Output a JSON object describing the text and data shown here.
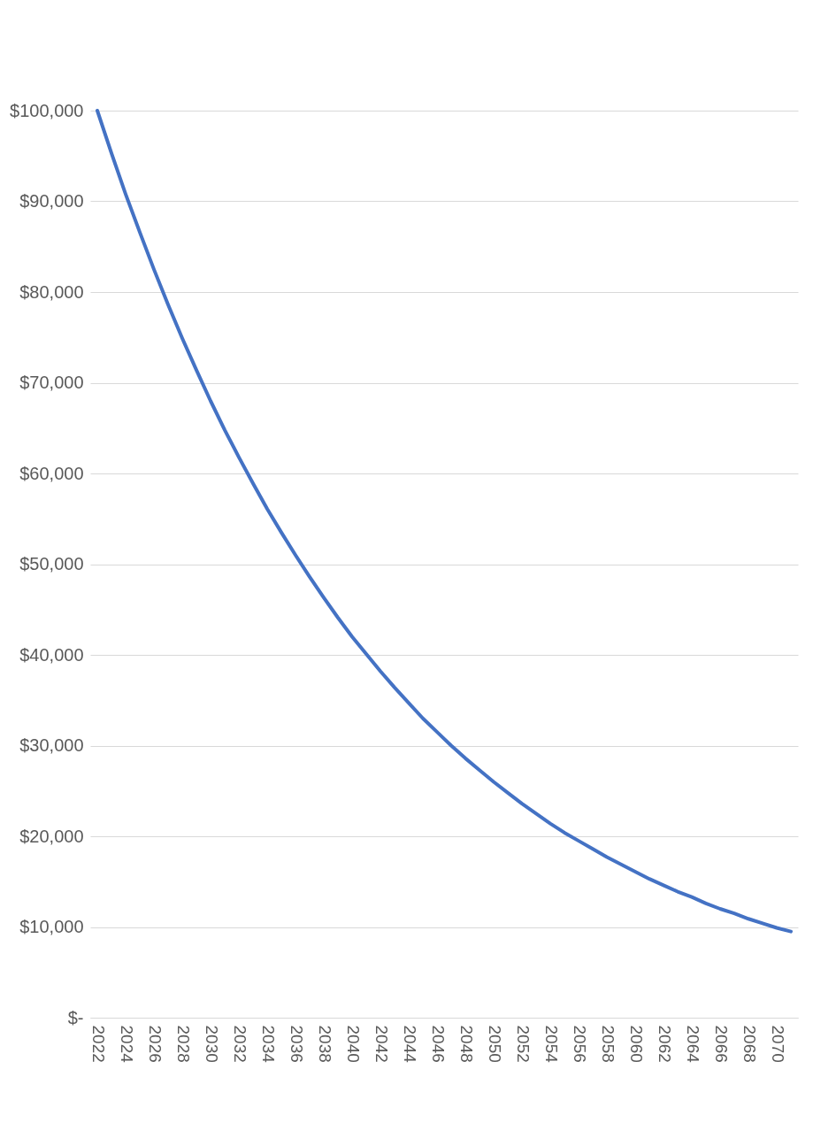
{
  "chart_data": {
    "type": "line",
    "categories": [
      "2022",
      null,
      "2024",
      null,
      "2026",
      null,
      "2028",
      null,
      "2030",
      null,
      "2032",
      null,
      "2034",
      null,
      "2036",
      null,
      "2038",
      null,
      "2040",
      null,
      "2042",
      null,
      "2044",
      null,
      "2046",
      null,
      "2048",
      null,
      "2050",
      null,
      "2052",
      null,
      "2054",
      null,
      "2056",
      null,
      "2058",
      null,
      "2060",
      null,
      "2062",
      null,
      "2064",
      null,
      "2066",
      null,
      "2068",
      null,
      "2070",
      null
    ],
    "series": [
      {
        "color": "#4472c4",
        "values": [
          100000,
          95300,
          90800,
          86600,
          82500,
          78600,
          74900,
          71400,
          68000,
          64800,
          61800,
          58900,
          56100,
          53500,
          51000,
          48600,
          46300,
          44100,
          42000,
          40100,
          38200,
          36400,
          34700,
          33000,
          31500,
          30000,
          28600,
          27300,
          26000,
          24800,
          23600,
          22500,
          21400,
          20400,
          19500,
          18600,
          17700,
          16900,
          16100,
          15300,
          14600,
          13900,
          13300,
          12600,
          12000,
          11500,
          10900,
          10400,
          9900,
          9500
        ]
      }
    ],
    "ylim": [
      0,
      100000
    ],
    "yticks": [
      {
        "value": 0,
        "label": "$-"
      },
      {
        "value": 10000,
        "label": "$10,000"
      },
      {
        "value": 20000,
        "label": "$20,000"
      },
      {
        "value": 30000,
        "label": "$30,000"
      },
      {
        "value": 40000,
        "label": "$40,000"
      },
      {
        "value": 50000,
        "label": "$50,000"
      },
      {
        "value": 60000,
        "label": "$60,000"
      },
      {
        "value": 70000,
        "label": "$70,000"
      },
      {
        "value": 80000,
        "label": "$80,000"
      },
      {
        "value": 90000,
        "label": "$90,000"
      },
      {
        "value": 100000,
        "label": "$100,000"
      }
    ],
    "grid": "y",
    "marker": "none",
    "line_style": "solid"
  }
}
